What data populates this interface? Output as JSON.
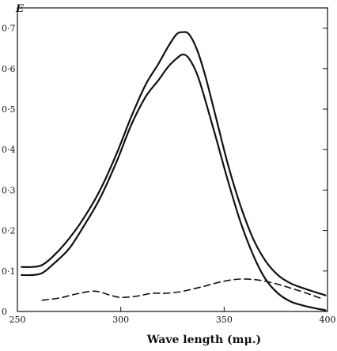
{
  "chart_data": {
    "type": "line",
    "title": "",
    "xlabel": "Wave length (mμ.)",
    "ylabel": "E",
    "xlim": [
      250,
      400
    ],
    "ylim": [
      0,
      0.75
    ],
    "x_ticks": [
      250,
      300,
      350,
      400
    ],
    "x_tick_labels": [
      "250",
      "300",
      "350",
      "400"
    ],
    "y_ticks": [
      0,
      0.1,
      0.2,
      0.3,
      0.4,
      0.5,
      0.6,
      0.7
    ],
    "y_tick_labels": [
      "0",
      "0·1",
      "0·2",
      "0·3",
      "0·4",
      "0·5",
      "0·6",
      "0·7"
    ],
    "grid": false,
    "series": [
      {
        "style": "solid",
        "x": [
          252,
          257,
          262,
          268,
          275,
          282,
          290,
          298,
          305,
          312,
          318,
          323,
          327,
          330,
          333,
          337,
          341,
          346,
          352,
          358,
          364,
          370,
          376,
          382,
          388,
          394,
          399
        ],
        "y": [
          0.11,
          0.11,
          0.115,
          0.14,
          0.18,
          0.23,
          0.3,
          0.39,
          0.48,
          0.56,
          0.61,
          0.655,
          0.685,
          0.69,
          0.685,
          0.645,
          0.58,
          0.48,
          0.36,
          0.26,
          0.18,
          0.125,
          0.09,
          0.07,
          0.058,
          0.048,
          0.04
        ]
      },
      {
        "style": "solid",
        "x": [
          252,
          257,
          262,
          268,
          275,
          282,
          290,
          298,
          305,
          312,
          318,
          323,
          327,
          330,
          333,
          337,
          341,
          346,
          352,
          358,
          364,
          370,
          376,
          382,
          388,
          394,
          399
        ],
        "y": [
          0.09,
          0.09,
          0.095,
          0.12,
          0.155,
          0.21,
          0.28,
          0.37,
          0.46,
          0.53,
          0.57,
          0.605,
          0.625,
          0.635,
          0.625,
          0.585,
          0.52,
          0.43,
          0.32,
          0.22,
          0.14,
          0.08,
          0.045,
          0.025,
          0.015,
          0.008,
          0.003
        ]
      },
      {
        "style": "dashed",
        "x": [
          262,
          270,
          280,
          288,
          295,
          300,
          308,
          315,
          322,
          330,
          340,
          350,
          358,
          366,
          374,
          382,
          390,
          398
        ],
        "y": [
          0.028,
          0.033,
          0.045,
          0.05,
          0.04,
          0.035,
          0.038,
          0.045,
          0.045,
          0.05,
          0.062,
          0.075,
          0.08,
          0.078,
          0.07,
          0.058,
          0.045,
          0.03
        ]
      }
    ]
  }
}
